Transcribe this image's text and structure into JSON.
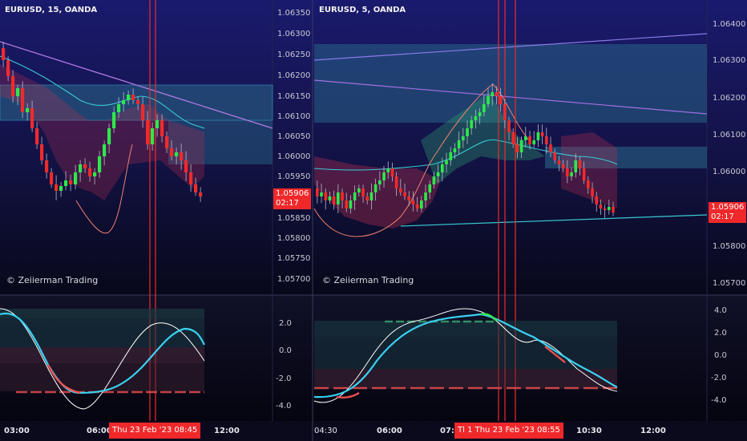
{
  "left_chart": {
    "title": "EURUSD, 15, OANDA",
    "watermark": "© Zeiierman Trading",
    "price_axis": [
      "1.06350",
      "1.06300",
      "1.06250",
      "1.06200",
      "1.06150",
      "1.06100",
      "1.06050",
      "1.06000",
      "1.05950",
      "1.05900",
      "1.05850",
      "1.05800",
      "1.05750",
      "1.05700"
    ],
    "current_price": "1.05906",
    "countdown": "02:17",
    "osc_axis": [
      "2.0",
      "0.0",
      "-2.0",
      "-4.0"
    ]
  },
  "right_chart": {
    "title": "EURUSD, 5, OANDA",
    "watermark": "© Zeiierman Trading",
    "price_axis": [
      "1.06400",
      "1.06300",
      "1.06200",
      "1.06100",
      "1.06000",
      "1.05900",
      "1.05800",
      "1.05700"
    ],
    "current_price": "1.05906",
    "countdown": "02:17",
    "osc_axis": [
      "4.0",
      "2.0",
      "0.0",
      "-2.0",
      "-4.0"
    ]
  },
  "time_axis": {
    "left_ticks": [
      "03:00",
      "06:00",
      "12:00"
    ],
    "left_cursor": "Thu 23 Feb '23   08:45",
    "right_ticks": [
      "04:30",
      "06:00",
      "07:",
      "10:30",
      "12:00"
    ],
    "right_cursor": "Tl   1  Thu 23 Feb '23   08:55"
  },
  "colors": {
    "background": "#0a0a1e",
    "bull": "#2ee84a",
    "bear": "#f02a2a",
    "zone": "#1e5a7a",
    "trendline": "#b07ae0",
    "cursor": "#f02a2a"
  }
}
